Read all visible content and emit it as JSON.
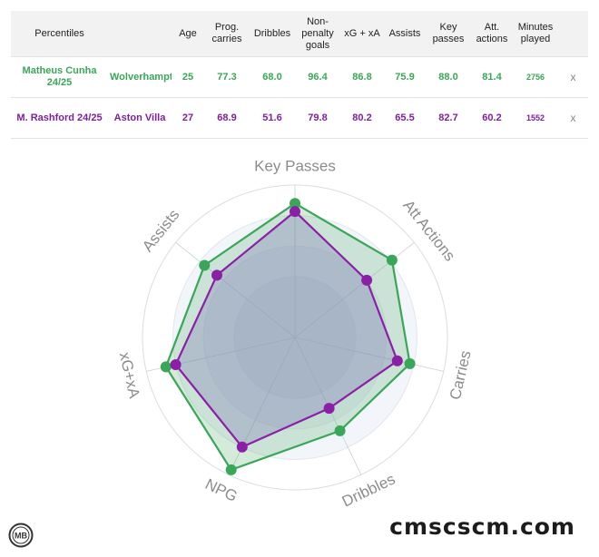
{
  "table": {
    "headers": [
      "Percentiles",
      "",
      "Age",
      "Prog. carries",
      "Dribbles",
      "Non-penalty goals",
      "xG + xA",
      "Assists",
      "Key passes",
      "Att. actions",
      "Minutes played",
      ""
    ],
    "rows": [
      {
        "player": "Matheus Cunha 24/25",
        "team": "Wolverhampton",
        "age": "25",
        "prog_carries": "77.3",
        "dribbles": "68.0",
        "np_goals": "96.4",
        "xg_xa": "86.8",
        "assists": "75.9",
        "key_passes": "88.0",
        "att_actions": "81.4",
        "minutes": "2756",
        "remove": "x",
        "color": "#3aa657"
      },
      {
        "player": "M. Rashford 24/25",
        "team": "Aston Villa",
        "age": "27",
        "prog_carries": "68.9",
        "dribbles": "51.6",
        "np_goals": "79.8",
        "xg_xa": "80.2",
        "assists": "65.5",
        "key_passes": "82.7",
        "att_actions": "60.2",
        "minutes": "1552",
        "remove": "x",
        "color": "#7f1f9e"
      }
    ]
  },
  "chart_data": {
    "type": "radar",
    "axes": [
      "Key Passes",
      "Att Actions",
      "Carries",
      "Dribbles",
      "NPG",
      "xG+xA",
      "Assists"
    ],
    "range": [
      0,
      100
    ],
    "series": [
      {
        "name": "Matheus Cunha 24/25",
        "values": [
          88.0,
          81.4,
          77.3,
          68.0,
          96.4,
          86.8,
          75.9
        ],
        "color": "#3aa657"
      },
      {
        "name": "M. Rashford 24/25",
        "values": [
          82.7,
          60.2,
          68.9,
          51.6,
          79.8,
          80.2,
          65.5
        ],
        "color": "#8b1fa6"
      }
    ]
  },
  "branding": {
    "logo_text": "MB",
    "watermark": "cmscscm.com"
  }
}
